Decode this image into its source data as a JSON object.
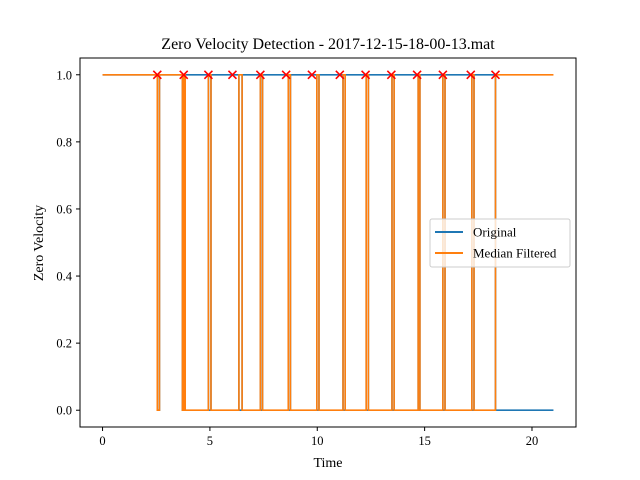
{
  "chart_data": {
    "type": "line",
    "title": "Zero Velocity Detection - 2017-12-15-18-00-13.mat",
    "xlabel": "Time",
    "ylabel": "Zero Velocity",
    "xlim": [
      -1.05,
      22.05
    ],
    "ylim": [
      -0.05,
      1.05
    ],
    "x_ticks": [
      0,
      5,
      10,
      15,
      20
    ],
    "x_tick_labels": [
      "0",
      "5",
      "10",
      "15",
      "20"
    ],
    "y_ticks": [
      0.0,
      0.2,
      0.4,
      0.6,
      0.8,
      1.0
    ],
    "y_tick_labels": [
      "0.0",
      "0.2",
      "0.4",
      "0.6",
      "0.8",
      "1.0"
    ],
    "grid": false,
    "legend_position": "center-right",
    "series": [
      {
        "name": "Original",
        "color": "#1f77b4",
        "x": [
          0,
          2.55,
          2.55,
          2.65,
          2.65,
          3.72,
          3.72,
          3.78,
          3.78,
          4.93,
          4.93,
          5.05,
          5.05,
          6.35,
          6.35,
          6.5,
          6.5,
          7.35,
          7.35,
          7.45,
          7.45,
          8.65,
          8.65,
          8.75,
          8.75,
          9.98,
          9.98,
          10.08,
          10.08,
          11.2,
          11.2,
          11.3,
          11.3,
          12.28,
          12.28,
          12.38,
          12.38,
          13.48,
          13.48,
          13.58,
          13.58,
          14.7,
          14.7,
          14.78,
          14.78,
          15.85,
          15.85,
          15.95,
          15.95,
          17.2,
          17.2,
          17.3,
          17.3,
          18.3,
          18.3,
          21
        ],
        "y": [
          1,
          1,
          0,
          0,
          1,
          1,
          0,
          0,
          1,
          1,
          0,
          0,
          1,
          1,
          0,
          0,
          1,
          1,
          0,
          0,
          1,
          1,
          0,
          0,
          1,
          1,
          0,
          0,
          1,
          1,
          0,
          0,
          1,
          1,
          0,
          0,
          1,
          1,
          0,
          0,
          1,
          1,
          0,
          0,
          1,
          1,
          0,
          0,
          1,
          1,
          0,
          0,
          1,
          1,
          0,
          0
        ]
      },
      {
        "name": "Median Filtered",
        "color": "#ff7f0e",
        "x": [
          0,
          2.55,
          2.55,
          2.65,
          2.65,
          3.72,
          3.72,
          3.78,
          3.78,
          3.85,
          3.85,
          4.93,
          4.93,
          5.05,
          5.05,
          6.35,
          6.35,
          6.5,
          6.5,
          7.35,
          7.35,
          7.45,
          7.45,
          8.65,
          8.65,
          8.75,
          8.75,
          9.98,
          9.98,
          10.08,
          10.08,
          11.2,
          11.2,
          11.3,
          11.3,
          12.28,
          12.28,
          12.38,
          12.38,
          13.48,
          13.48,
          13.58,
          13.58,
          14.7,
          14.7,
          14.78,
          14.78,
          15.85,
          15.85,
          15.95,
          15.95,
          17.2,
          17.2,
          17.3,
          17.3,
          18.3,
          18.3,
          21
        ],
        "y": [
          1,
          1,
          0,
          0,
          1,
          1,
          0,
          0,
          1,
          1,
          0,
          0,
          1,
          1,
          0,
          0,
          1,
          1,
          0,
          0,
          1,
          1,
          0,
          0,
          1,
          1,
          0,
          0,
          1,
          1,
          0,
          0,
          1,
          1,
          0,
          0,
          1,
          1,
          0,
          0,
          1,
          1,
          0,
          0,
          1,
          1,
          0,
          0,
          1,
          1,
          0,
          0,
          1,
          1,
          0,
          0,
          1,
          1
        ]
      }
    ],
    "markers": {
      "color": "#ff0000",
      "symbol": "x",
      "x": [
        2.55,
        3.78,
        4.93,
        6.05,
        7.35,
        8.55,
        9.75,
        11.05,
        12.25,
        13.45,
        14.65,
        15.85,
        17.15,
        18.3
      ],
      "y": [
        1,
        1,
        1,
        1,
        1,
        1,
        1,
        1,
        1,
        1,
        1,
        1,
        1,
        1
      ]
    }
  }
}
